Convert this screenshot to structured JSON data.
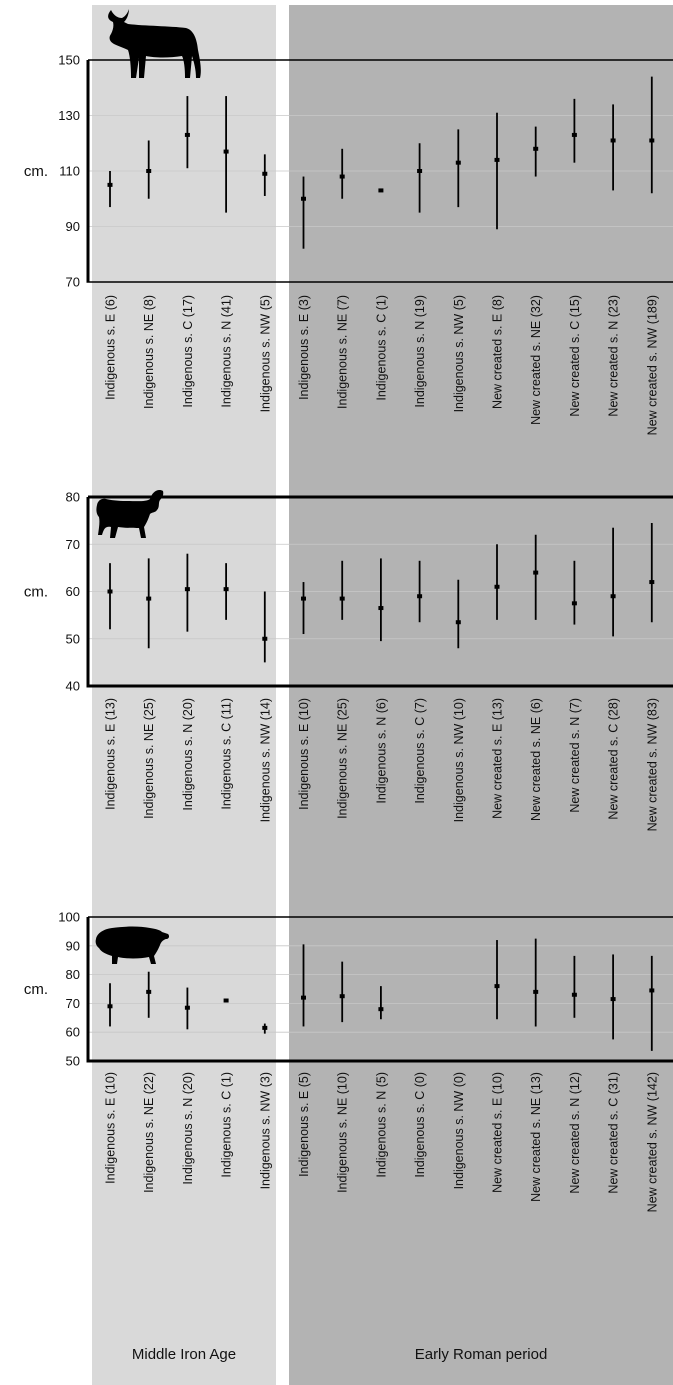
{
  "periods": [
    {
      "label": "Middle Iron Age",
      "bg": "#d9d9d9"
    },
    {
      "label": "Early Roman period",
      "bg": "#b3b3b3"
    }
  ],
  "colors": {
    "mark": "#000000",
    "frame": "#000000",
    "grid": "#c8c8c8"
  },
  "chart_data": [
    {
      "type": "range",
      "animal_icon": "cattle-icon",
      "ylabel": "cm.",
      "ylim": [
        70,
        150
      ],
      "yticks": [
        70,
        90,
        110,
        130,
        150
      ],
      "categories": [
        "Indigenous s. E (6)",
        "Indigenous s. NE (8)",
        "Indigenous s. C (17)",
        "Indigenous s. N (41)",
        "Indigenous s. NW (5)",
        "Indigenous s. E (3)",
        "Indigenous s. NE (7)",
        "Indigenous s. C (1)",
        "Indigenous s. N (19)",
        "Indigenous s. NW (5)",
        "New created s. E (8)",
        "New created s. NE (32)",
        "New created s. C (15)",
        "New created s. N (23)",
        "New created s. NW (189)"
      ],
      "period_of_category": [
        0,
        0,
        0,
        0,
        0,
        1,
        1,
        1,
        1,
        1,
        1,
        1,
        1,
        1,
        1
      ],
      "values": [
        {
          "min": 97,
          "mean": 105,
          "max": 110
        },
        {
          "min": 100,
          "mean": 110,
          "max": 121
        },
        {
          "min": 111,
          "mean": 123,
          "max": 137
        },
        {
          "min": 95,
          "mean": 117,
          "max": 137
        },
        {
          "min": 101,
          "mean": 109,
          "max": 116
        },
        {
          "min": 82,
          "mean": 100,
          "max": 108
        },
        {
          "min": 100,
          "mean": 108,
          "max": 118
        },
        {
          "min": 103,
          "mean": 103,
          "max": 103
        },
        {
          "min": 95,
          "mean": 110,
          "max": 120
        },
        {
          "min": 97,
          "mean": 113,
          "max": 125
        },
        {
          "min": 89,
          "mean": 114,
          "max": 131
        },
        {
          "min": 108,
          "mean": 118,
          "max": 126
        },
        {
          "min": 113,
          "mean": 123,
          "max": 136
        },
        {
          "min": 103,
          "mean": 121,
          "max": 134
        },
        {
          "min": 102,
          "mean": 121,
          "max": 144
        }
      ]
    },
    {
      "type": "range",
      "animal_icon": "sheep-icon",
      "ylabel": "cm.",
      "ylim": [
        40,
        80
      ],
      "yticks": [
        40,
        50,
        60,
        70,
        80
      ],
      "categories": [
        "Indigenous s. E (13)",
        "Indigenous s. NE (25)",
        "Indigenous s. N (20)",
        "Indigenous s. C (11)",
        "Indigenous s. NW (14)",
        "Indigenous s. E (10)",
        "Indigenous s. NE (25)",
        "Indigenous s. N (6)",
        "Indigenous s. C (7)",
        "Indigenous s. NW (10)",
        "New created s. E (13)",
        "New created s. NE (6)",
        "New created s. N (7)",
        "New created s. C (28)",
        "New created s. NW (83)"
      ],
      "period_of_category": [
        0,
        0,
        0,
        0,
        0,
        1,
        1,
        1,
        1,
        1,
        1,
        1,
        1,
        1,
        1
      ],
      "values": [
        {
          "min": 52,
          "mean": 60,
          "max": 66
        },
        {
          "min": 48,
          "mean": 58.5,
          "max": 67
        },
        {
          "min": 51.5,
          "mean": 60.5,
          "max": 68
        },
        {
          "min": 54,
          "mean": 60.5,
          "max": 66
        },
        {
          "min": 45,
          "mean": 50,
          "max": 60
        },
        {
          "min": 51,
          "mean": 58.5,
          "max": 62
        },
        {
          "min": 54,
          "mean": 58.5,
          "max": 66.5
        },
        {
          "min": 49.5,
          "mean": 56.5,
          "max": 67
        },
        {
          "min": 53.5,
          "mean": 59,
          "max": 66.5
        },
        {
          "min": 48,
          "mean": 53.5,
          "max": 62.5
        },
        {
          "min": 54,
          "mean": 61,
          "max": 70
        },
        {
          "min": 54,
          "mean": 64,
          "max": 72
        },
        {
          "min": 53,
          "mean": 57.5,
          "max": 66.5
        },
        {
          "min": 50.5,
          "mean": 59,
          "max": 73.5
        },
        {
          "min": 53.5,
          "mean": 62,
          "max": 74.5
        }
      ]
    },
    {
      "type": "range",
      "animal_icon": "pig-icon",
      "ylabel": "cm.",
      "ylim": [
        50,
        100
      ],
      "yticks": [
        50,
        60,
        70,
        80,
        90,
        100
      ],
      "categories": [
        "Indigenous s. E (10)",
        "Indigenous s. NE (22)",
        "Indigenous s. N (20)",
        "Indigenous s. C (1)",
        "Indigenous s. NW (3)",
        "Indigenous s. E (5)",
        "Indigenous s. NE (10)",
        "Indigenous s. N (5)",
        "Indigenous s. C (0)",
        "Indigenous s. NW (0)",
        "New created s. E (10)",
        "New created s. NE (13)",
        "New created s. N (12)",
        "New created s. C (31)",
        "New created s. NW (142)"
      ],
      "period_of_category": [
        0,
        0,
        0,
        0,
        0,
        1,
        1,
        1,
        1,
        1,
        1,
        1,
        1,
        1,
        1
      ],
      "values": [
        {
          "min": 62,
          "mean": 69,
          "max": 77
        },
        {
          "min": 65,
          "mean": 74,
          "max": 81
        },
        {
          "min": 61,
          "mean": 68.5,
          "max": 75.5
        },
        {
          "min": 71,
          "mean": 71,
          "max": 71
        },
        {
          "min": 59.5,
          "mean": 61.5,
          "max": 63
        },
        {
          "min": 62,
          "mean": 72,
          "max": 90.5
        },
        {
          "min": 63.5,
          "mean": 72.5,
          "max": 84.5
        },
        {
          "min": 64.5,
          "mean": 68,
          "max": 76
        },
        null,
        null,
        {
          "min": 64.5,
          "mean": 76,
          "max": 92
        },
        {
          "min": 62,
          "mean": 74,
          "max": 92.5
        },
        {
          "min": 65,
          "mean": 73,
          "max": 86.5
        },
        {
          "min": 57.5,
          "mean": 71.5,
          "max": 87
        },
        {
          "min": 53.5,
          "mean": 74.5,
          "max": 86.5
        }
      ]
    }
  ]
}
